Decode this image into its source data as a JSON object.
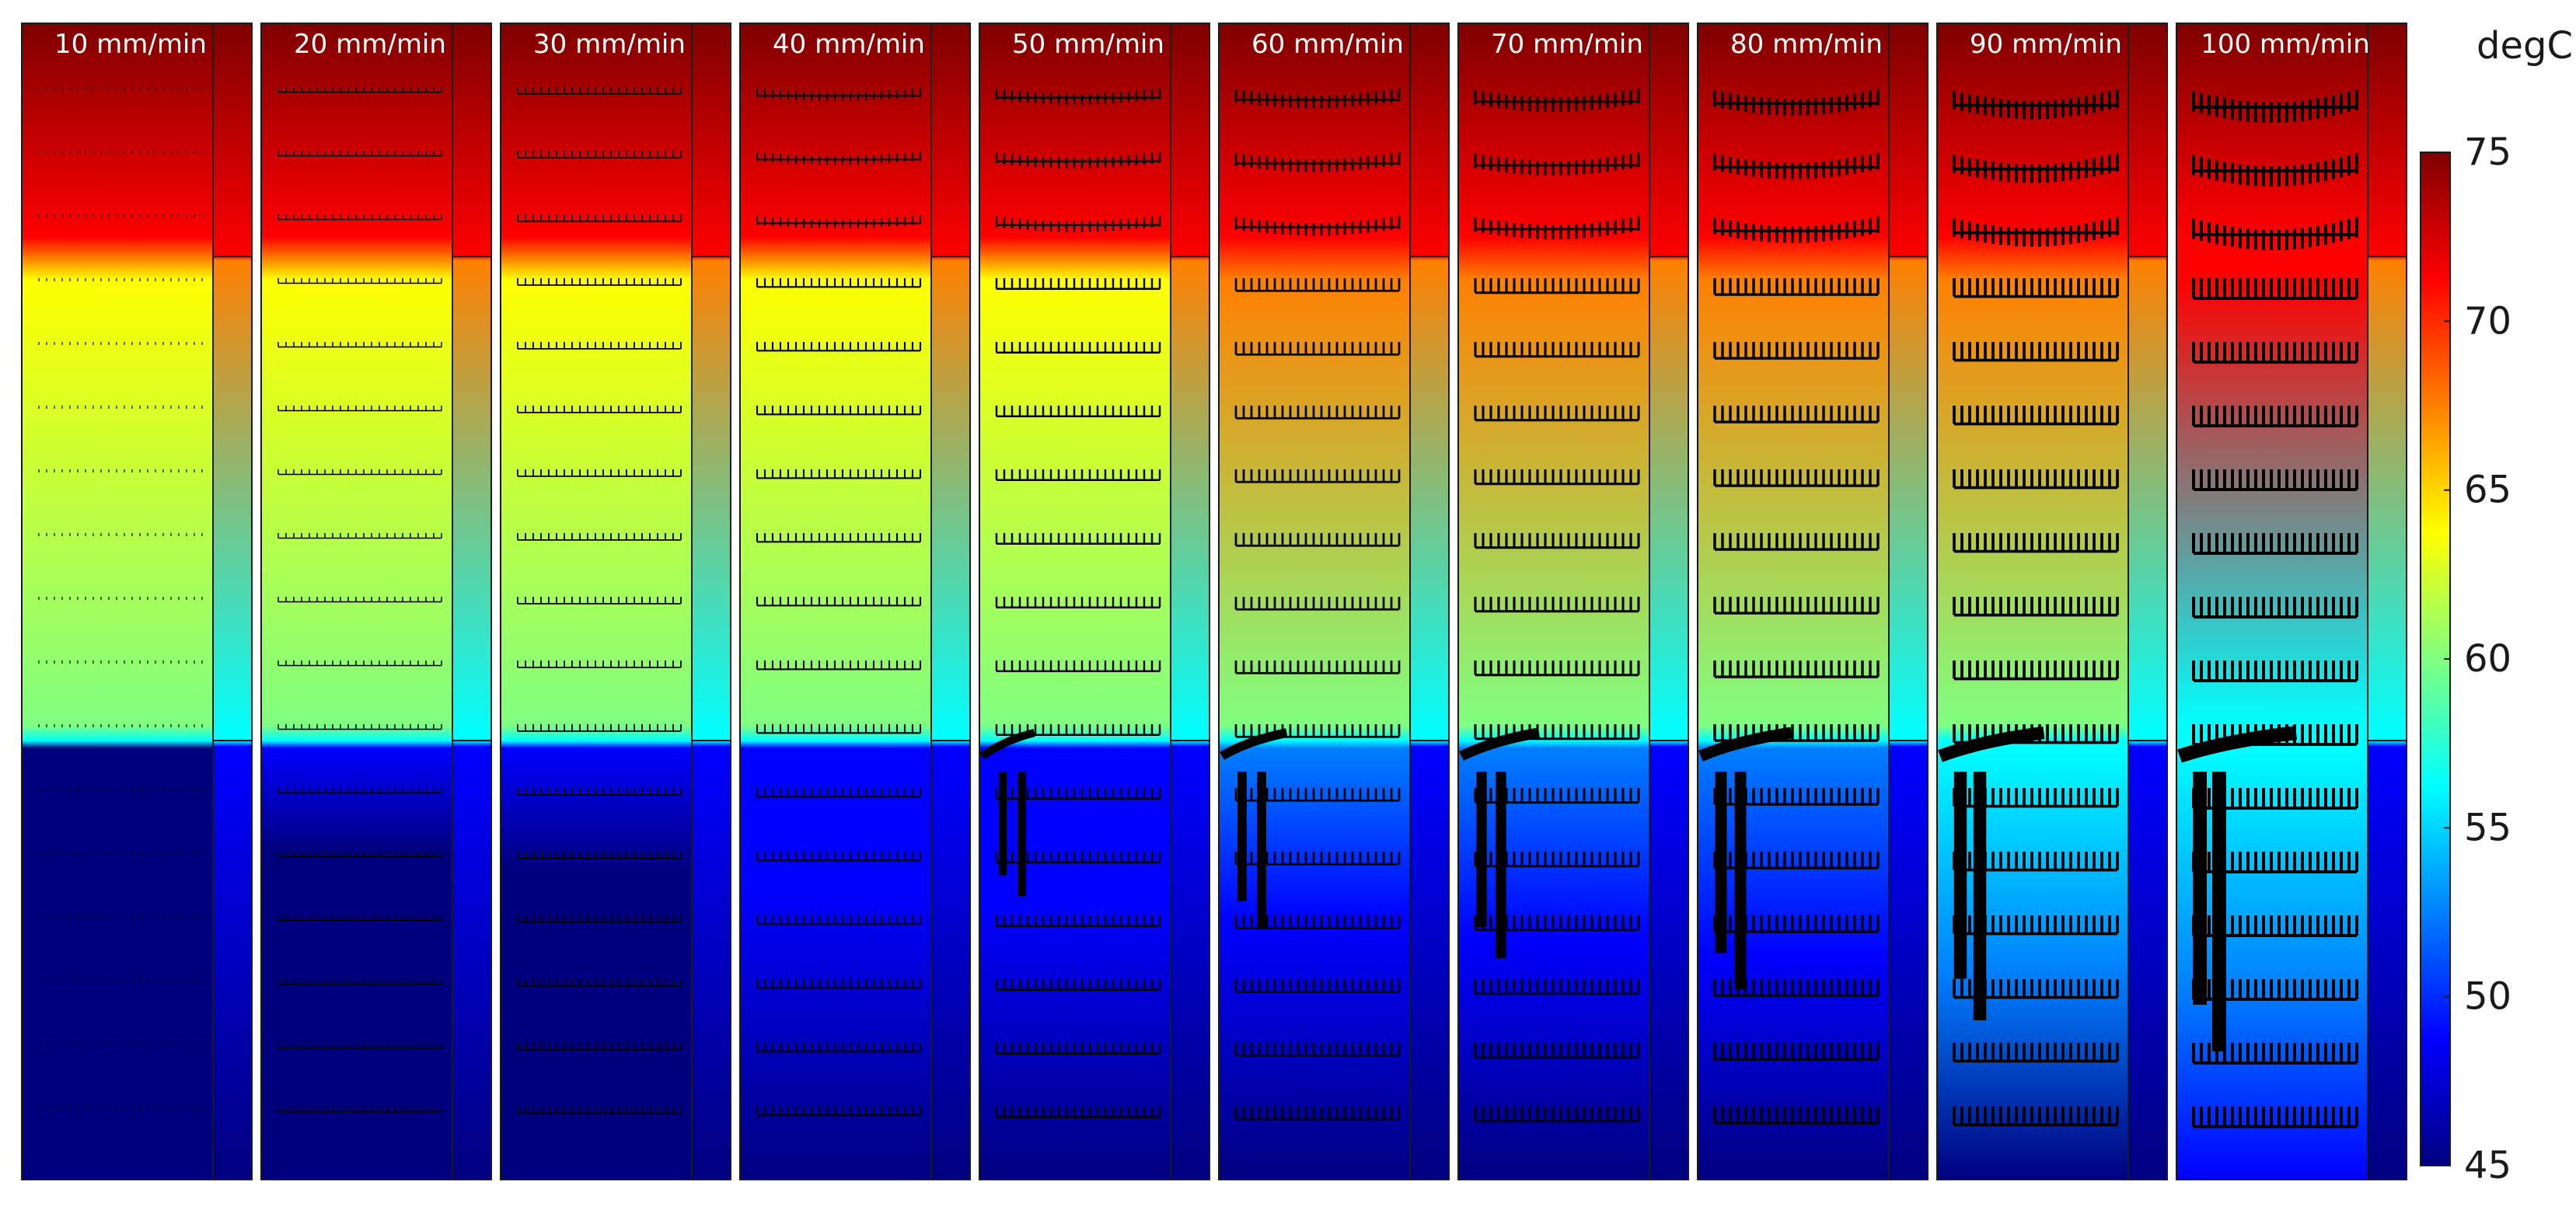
{
  "chart_data": {
    "type": "heatmap",
    "description_unit": "degC",
    "panels": [
      {
        "label": "10 mm/min",
        "speed": 10
      },
      {
        "label": "20 mm/min",
        "speed": 20
      },
      {
        "label": "30 mm/min",
        "speed": 30
      },
      {
        "label": "40 mm/min",
        "speed": 40
      },
      {
        "label": "50 mm/min",
        "speed": 50
      },
      {
        "label": "60 mm/min",
        "speed": 60
      },
      {
        "label": "70 mm/min",
        "speed": 70
      },
      {
        "label": "80 mm/min",
        "speed": 80
      },
      {
        "label": "90 mm/min",
        "speed": 90
      },
      {
        "label": "100 mm/min",
        "speed": 100
      }
    ],
    "colorbar": {
      "title": "degC",
      "min": 45,
      "max": 75,
      "ticks": [
        {
          "value": 75,
          "label": "75"
        },
        {
          "value": 70,
          "label": "70"
        },
        {
          "value": 65,
          "label": "65"
        },
        {
          "value": 60,
          "label": "60"
        },
        {
          "value": 55,
          "label": "55"
        },
        {
          "value": 50,
          "label": "50"
        },
        {
          "value": 45,
          "label": "45"
        }
      ],
      "colormap": [
        "#00007f",
        "#0000ff",
        "#0080ff",
        "#00ffff",
        "#80ff80",
        "#ffff00",
        "#ff8000",
        "#ff0000",
        "#7f0000"
      ]
    }
  }
}
